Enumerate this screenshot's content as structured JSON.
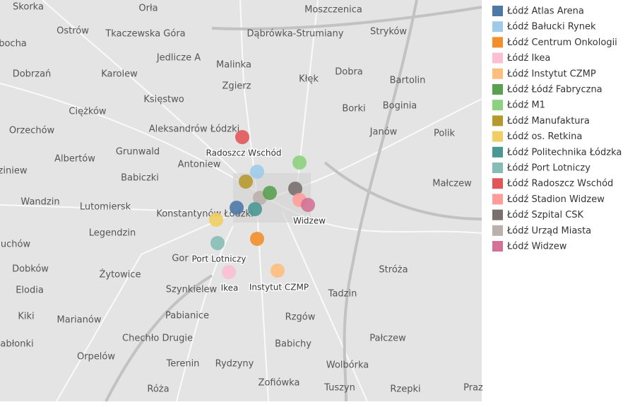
{
  "map": {
    "places": [
      "Skorka",
      "Orła",
      "Moszczenica",
      "Ostrów",
      "Tkaczewska Góra",
      "Dąbrówka-Strumiany",
      "Stryków",
      "bocha",
      "Jedlicze A",
      "Malinka",
      "Dobra",
      "Bartolin",
      "Dobrzań",
      "Karolew",
      "Kłęk",
      "Zgierz",
      "Księstwo",
      "Borki",
      "Boginia",
      "Ciężków",
      "Orzechów",
      "Aleksandrów Łódzki",
      "Janów",
      "Polik",
      "Grunwald",
      "Albertów",
      "Antoniew",
      "ziniew",
      "Babiczki",
      "Małczew",
      "Wandzin",
      "Lutomiersk",
      "Konstantynów Łódzki",
      "Legendzin",
      "uchów",
      "Gor",
      "Dobków",
      "Żytowice",
      "Stróża",
      "Elodia",
      "Szynkielew",
      "Tadzin",
      "Kiki",
      "Marianów",
      "Pabianice",
      "Rzgów",
      "abłonki",
      "Chechło Drugie",
      "Babichy",
      "Pałczew",
      "Orpelów",
      "Terenin",
      "Rydzyny",
      "Wolbórka",
      "Zofiówka",
      "Róża",
      "Tuszyn",
      "Rzepki",
      "Praz"
    ],
    "point_labels": [
      "Radoszcz Wschód",
      "Widzew",
      "Port Lotniczy",
      "Ikea",
      "Instytut CZMP"
    ]
  },
  "legend": [
    {
      "name": "Łódź Atlas Arena",
      "color": "#4e79a7"
    },
    {
      "name": "Łódź Bałucki Rynek",
      "color": "#a0cbe8"
    },
    {
      "name": "Łódź Centrum Onkologii",
      "color": "#f28e2b"
    },
    {
      "name": "Łódź Ikea",
      "color": "#fabfd2"
    },
    {
      "name": "Łódź Instytut CZMP",
      "color": "#ffbe7d"
    },
    {
      "name": "Łódź Łódź Fabryczna",
      "color": "#59a14f"
    },
    {
      "name": "Łódź M1",
      "color": "#8cd17d"
    },
    {
      "name": "Łódź Manufaktura",
      "color": "#b6992d"
    },
    {
      "name": "Łódź os. Retkina",
      "color": "#f1ce63"
    },
    {
      "name": "Łódź Politechnika Łódzka",
      "color": "#499894"
    },
    {
      "name": "Łódź Port Lotniczy",
      "color": "#86bcb6"
    },
    {
      "name": "Łódź Radoszcz Wschód",
      "color": "#e15759"
    },
    {
      "name": "Łódź Stadion Widzew",
      "color": "#ff9d9a"
    },
    {
      "name": "Łódź Szpital CSK",
      "color": "#79706e"
    },
    {
      "name": "Łódź Urząd Miasta",
      "color": "#bab0ac"
    },
    {
      "name": "Łódź Widzew",
      "color": "#d37295"
    }
  ]
}
